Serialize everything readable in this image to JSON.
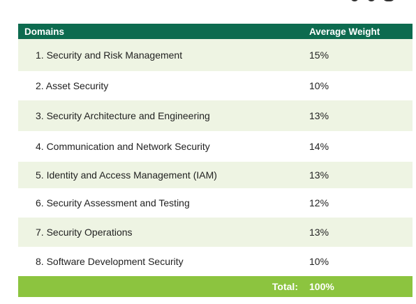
{
  "table": {
    "headers": {
      "domain": "Domains",
      "weight": "Average Weight"
    },
    "rows": [
      {
        "domain": "1. Security and Risk Management",
        "weight": "15%"
      },
      {
        "domain": "2. Asset Security",
        "weight": "10%"
      },
      {
        "domain": "3. Security Architecture and Engineering",
        "weight": "13%"
      },
      {
        "domain": "4. Communication and Network Security",
        "weight": "14%"
      },
      {
        "domain": "5. Identity and Access Management (IAM)",
        "weight": "13%"
      },
      {
        "domain": "6. Security Assessment and Testing",
        "weight": "12%"
      },
      {
        "domain": "7. Security Operations",
        "weight": "13%"
      },
      {
        "domain": "8. Software Development Security",
        "weight": "10%"
      }
    ],
    "total": {
      "label": "Total:",
      "value": "100%"
    }
  },
  "colors": {
    "header": "#0d6b4f",
    "row_alt": "#eef4e3",
    "total": "#8cc43f"
  }
}
